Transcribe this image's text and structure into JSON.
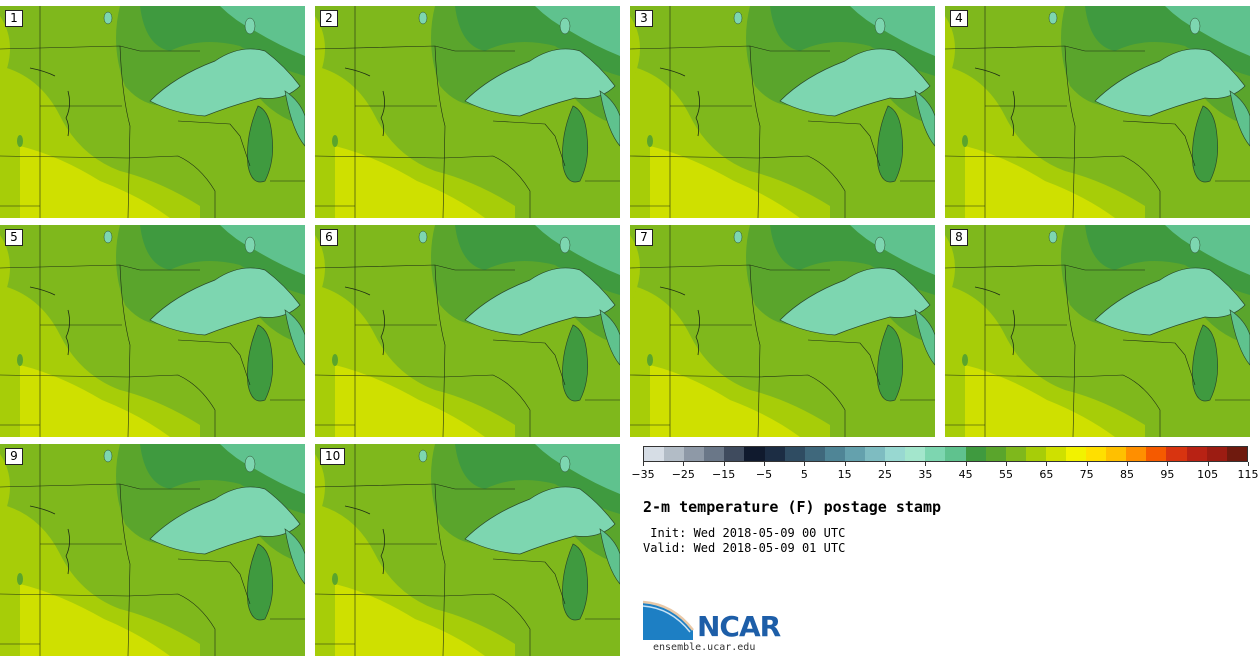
{
  "title": "2-m temperature (F) postage stamp",
  "init": " Init: Wed 2018-05-09 00 UTC",
  "valid": "Valid: Wed 2018-05-09 01 UTC",
  "panels": [
    {
      "label": "1"
    },
    {
      "label": "2"
    },
    {
      "label": "3"
    },
    {
      "label": "4"
    },
    {
      "label": "5"
    },
    {
      "label": "6"
    },
    {
      "label": "7"
    },
    {
      "label": "8"
    },
    {
      "label": "9"
    },
    {
      "label": "10"
    }
  ],
  "colorbar": {
    "colors": [
      "#d6dde5",
      "#b2bcc6",
      "#8e99a7",
      "#6a7788",
      "#3f4b5e",
      "#101a2e",
      "#1c2d44",
      "#2f4c62",
      "#3f687c",
      "#4f8596",
      "#64a1ad",
      "#7ebcc1",
      "#98d8d1",
      "#a3e6cc",
      "#7dd6b0",
      "#5fc28e",
      "#3f9a3f",
      "#5aa52c",
      "#7fb81c",
      "#a7cd08",
      "#cfe000",
      "#f2f200",
      "#ffdf00",
      "#ffc000",
      "#ff8f00",
      "#f55a00",
      "#d83410",
      "#b82214",
      "#9c1c12",
      "#6f1a0e"
    ],
    "tick_labels": [
      "−35",
      "−25",
      "−15",
      "−5",
      "5",
      "15",
      "25",
      "35",
      "45",
      "55",
      "65",
      "75",
      "85",
      "95",
      "105",
      "115"
    ]
  },
  "logo": {
    "name": "NCAR",
    "url": "ensemble.ucar.edu"
  }
}
